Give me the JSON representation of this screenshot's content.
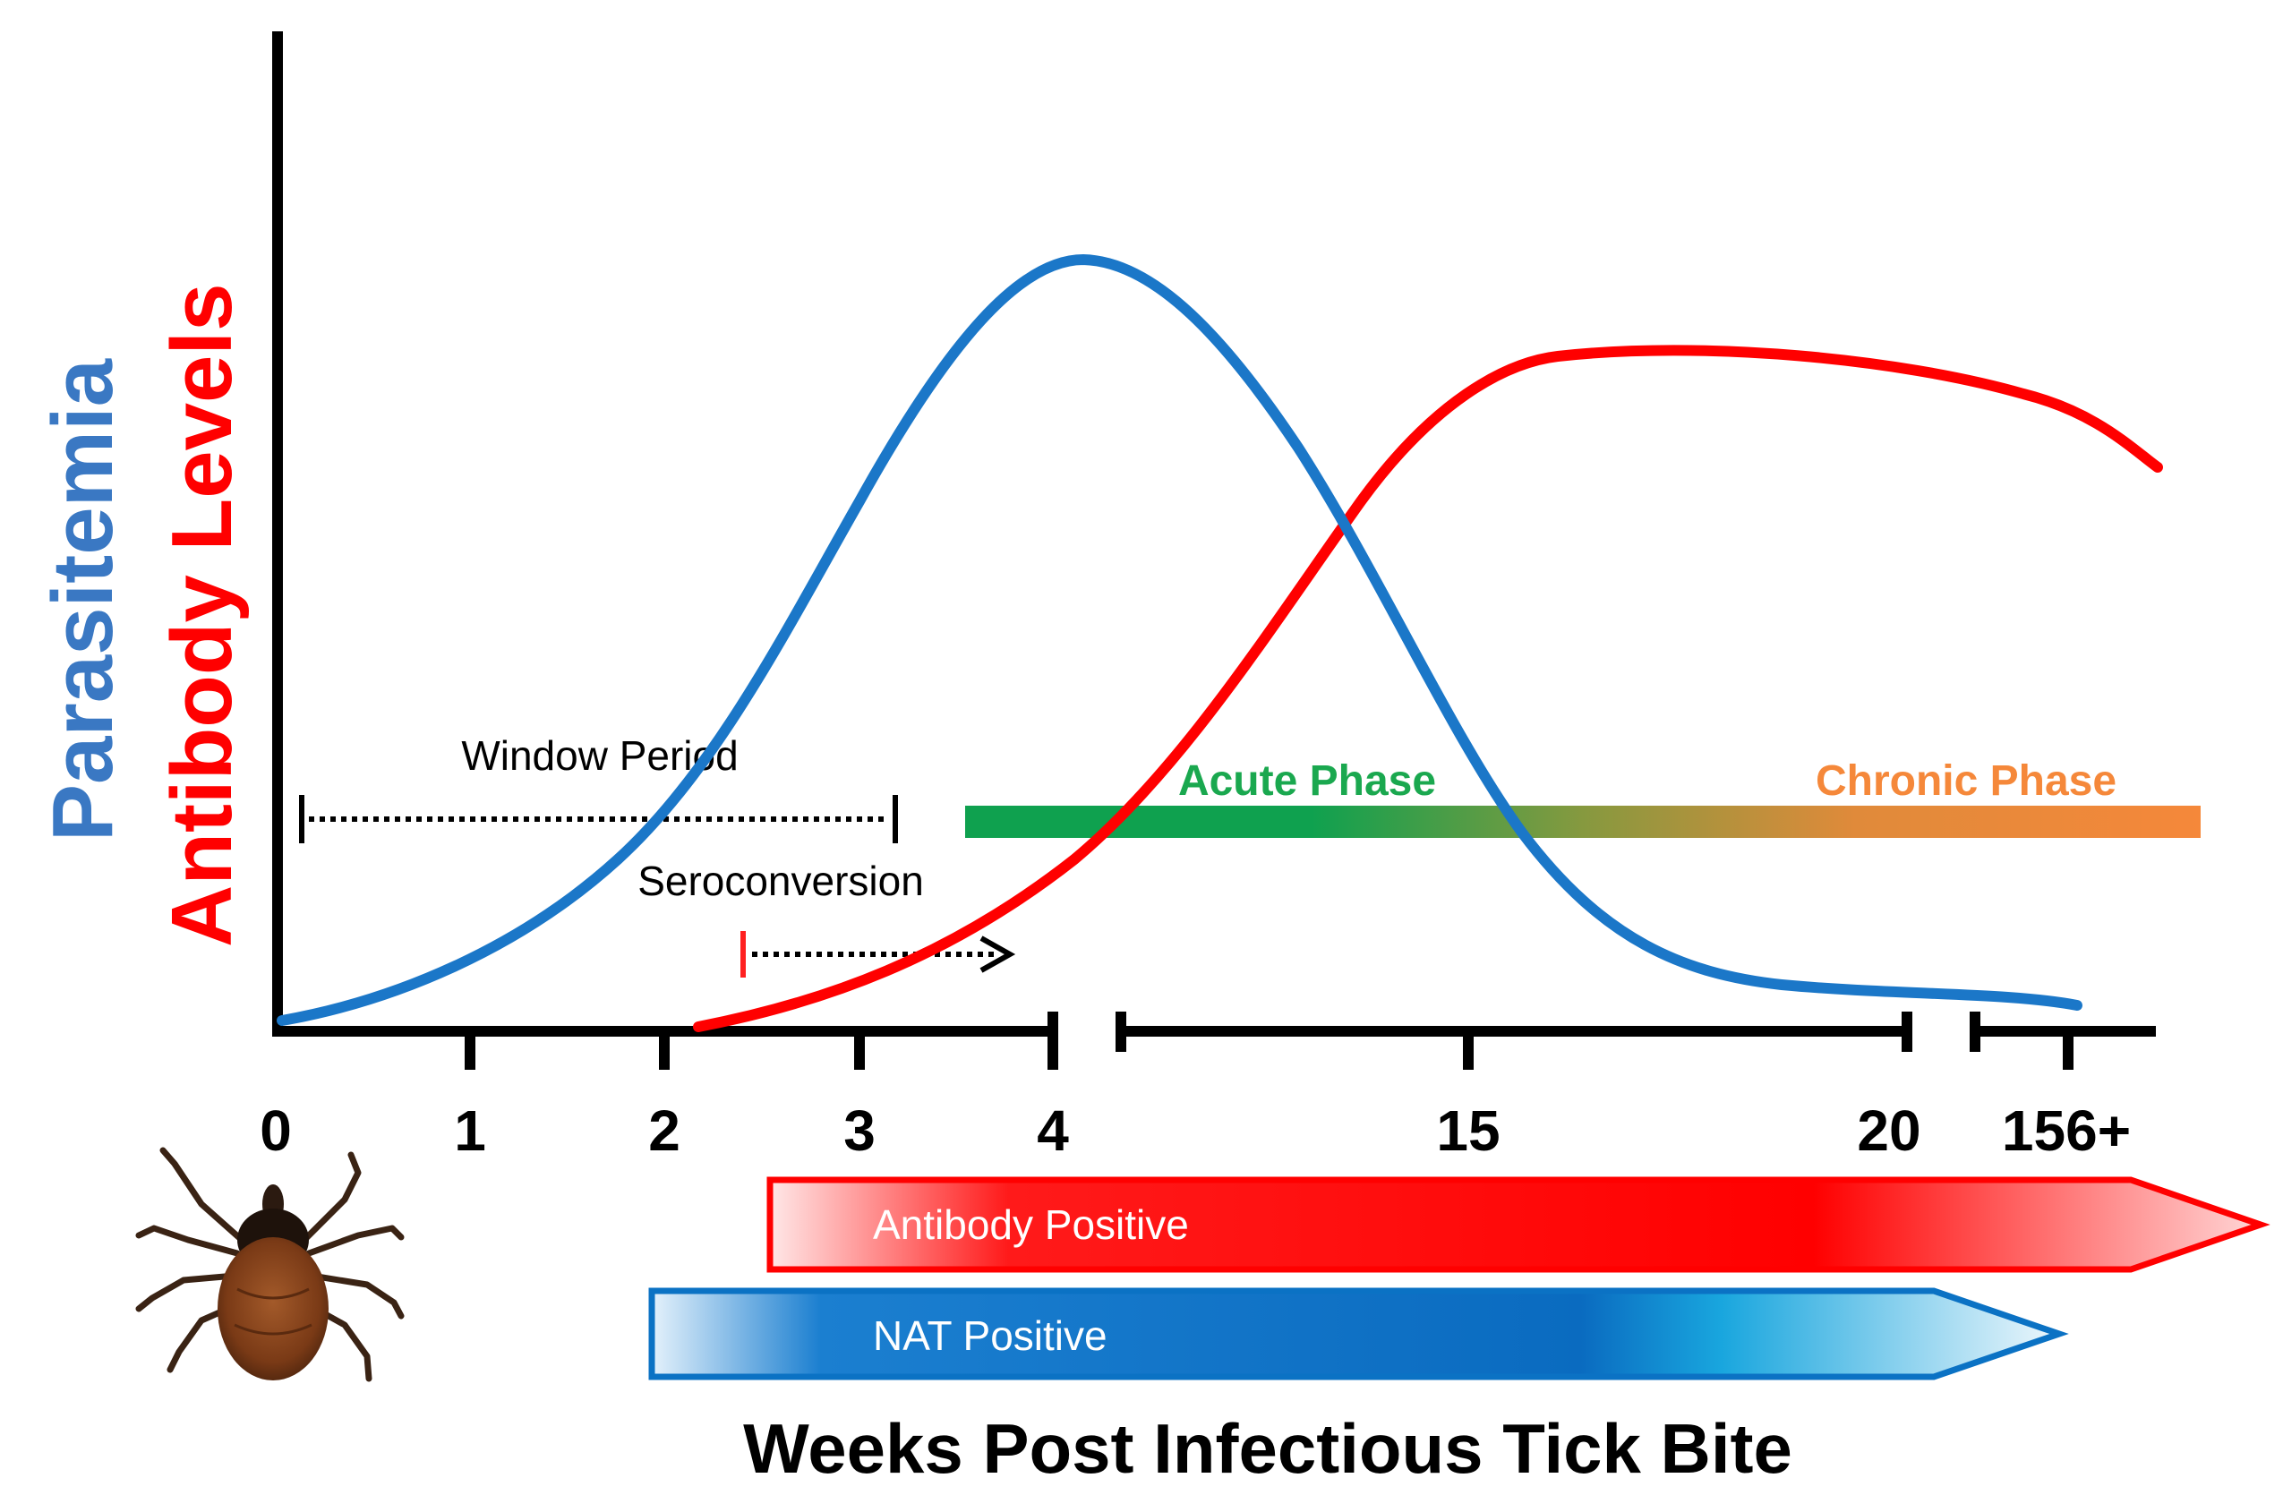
{
  "y_axis": {
    "label_parasitemia": "Parasitemia",
    "label_antibody": "Antibody Levels",
    "color_parasitemia": "#3a78c3",
    "color_antibody": "#ff0000"
  },
  "x_axis": {
    "title": "Weeks Post Infectious Tick Bite",
    "ticks": [
      "0",
      "1",
      "2",
      "3",
      "4",
      "15",
      "20",
      "156+"
    ]
  },
  "annotations": {
    "window_period": "Window Period",
    "seroconversion": "Seroconversion"
  },
  "phases": {
    "acute": "Acute Phase",
    "chronic": "Chronic Phase",
    "acute_color": "#1aa84f",
    "chronic_color": "#f5883a"
  },
  "result_arrows": {
    "antibody_positive": "Antibody Positive",
    "nat_positive": "NAT Positive",
    "antibody_color": "#ff0000",
    "nat_color": "#0b72c4"
  },
  "chart_data": {
    "type": "line",
    "xlabel": "Weeks Post Infectious Tick Bite",
    "series": [
      {
        "name": "Parasitemia",
        "color": "#0b72c4"
      },
      {
        "name": "Antibody Levels",
        "color": "#ff0000"
      }
    ]
  }
}
